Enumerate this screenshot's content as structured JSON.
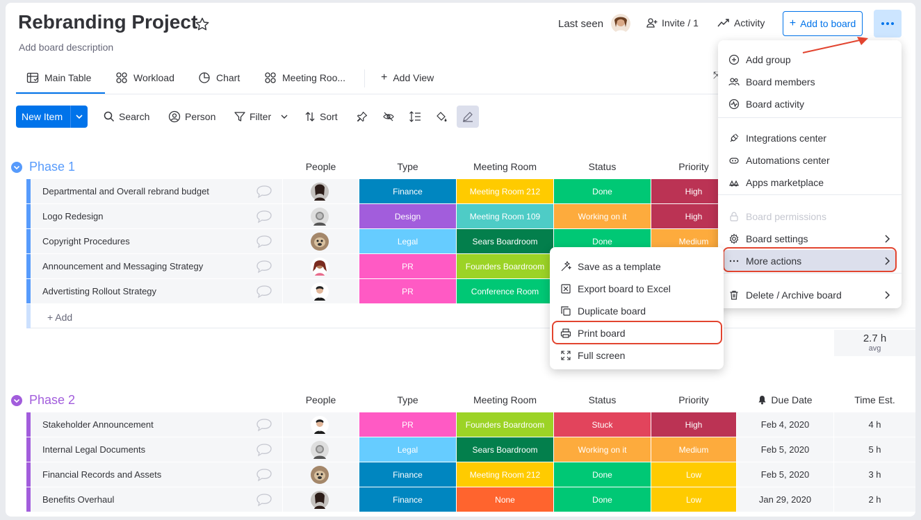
{
  "board": {
    "title": "Rebranding Project",
    "description": "Add board description",
    "last_seen": "Last seen",
    "invite": "Invite / 1",
    "activity": "Activity",
    "add_to_board": "Add to board"
  },
  "tabs": [
    "Main Table",
    "Workload",
    "Chart",
    "Meeting Roo...",
    "Add View"
  ],
  "toolbar": {
    "new_item": "New Item",
    "search": "Search",
    "person": "Person",
    "filter": "Filter",
    "sort": "Sort"
  },
  "columns": [
    "People",
    "Type",
    "Meeting Room",
    "Status",
    "Priority",
    "Due Date",
    "Time Est."
  ],
  "colors": {
    "accent": "#0073ea",
    "phase1": "#579bfc",
    "phase2": "#a25ddc",
    "highlight": "#e2442f"
  },
  "groups": [
    {
      "title": "Phase 1",
      "add_label": "+ Add",
      "summary_value": "2.7 h",
      "summary_label": "avg",
      "rows": [
        {
          "name": "Departmental and Overall rebrand budget",
          "type": "Finance",
          "type_color": "#0086c0",
          "room": "Meeting Room 212",
          "room_color": "#ffcb00",
          "status": "Done",
          "status_color": "#00c875",
          "priority": "High",
          "priority_color": "#bb3354"
        },
        {
          "name": "Logo Redesign",
          "type": "Design",
          "type_color": "#a25ddc",
          "room": "Meeting Room 109",
          "room_color": "#4eccc6",
          "status": "Working on it",
          "status_color": "#fdab3d",
          "priority": "High",
          "priority_color": "#bb3354"
        },
        {
          "name": "Copyright Procedures",
          "type": "Legal",
          "type_color": "#66ccff",
          "room": "Sears Boardroom",
          "room_color": "#037f4c",
          "status": "Done",
          "status_color": "#00c875",
          "priority": "Medium",
          "priority_color": "#fdab3d"
        },
        {
          "name": "Announcement and Messaging Strategy",
          "type": "PR",
          "type_color": "#ff5ac4",
          "room": "Founders Boardroom",
          "room_color": "#9cd326",
          "status": "",
          "status_color": "#00c875",
          "priority": "",
          "priority_color": "#fdab3d"
        },
        {
          "name": "Advertisting Rollout Strategy",
          "type": "PR",
          "type_color": "#ff5ac4",
          "room": "Conference Room",
          "room_color": "#00c875",
          "status": "",
          "status_color": "#00c875",
          "priority": "",
          "priority_color": "#fdab3d"
        }
      ]
    },
    {
      "title": "Phase 2",
      "rows": [
        {
          "name": "Stakeholder Announcement",
          "type": "PR",
          "type_color": "#ff5ac4",
          "room": "Founders Boardroom",
          "room_color": "#9cd326",
          "status": "Stuck",
          "status_color": "#e2445c",
          "priority": "High",
          "priority_color": "#bb3354",
          "due": "Feb 4, 2020",
          "time": "4 h"
        },
        {
          "name": "Internal Legal Documents",
          "type": "Legal",
          "type_color": "#66ccff",
          "room": "Sears Boardroom",
          "room_color": "#037f4c",
          "status": "Working on it",
          "status_color": "#fdab3d",
          "priority": "Medium",
          "priority_color": "#fdab3d",
          "due": "Feb 5, 2020",
          "time": "5 h"
        },
        {
          "name": "Financial Records and Assets",
          "type": "Finance",
          "type_color": "#0086c0",
          "room": "Meeting Room 212",
          "room_color": "#ffcb00",
          "status": "Done",
          "status_color": "#00c875",
          "priority": "Low",
          "priority_color": "#ffcb00",
          "due": "Feb 5, 2020",
          "time": "3 h"
        },
        {
          "name": "Benefits Overhaul",
          "type": "Finance",
          "type_color": "#0086c0",
          "room": "None",
          "room_color": "#ff642e",
          "status": "Done",
          "status_color": "#00c875",
          "priority": "Low",
          "priority_color": "#ffcb00",
          "due": "Jan 29, 2020",
          "time": "2 h"
        }
      ]
    }
  ],
  "board_menu": {
    "items": [
      {
        "label": "Add group",
        "icon": "plus-circle-icon"
      },
      {
        "label": "Board members",
        "icon": "people-icon"
      },
      {
        "label": "Board activity",
        "icon": "activity-icon"
      },
      {
        "label": "Integrations center",
        "icon": "plug-icon"
      },
      {
        "label": "Automations center",
        "icon": "robot-icon"
      },
      {
        "label": "Apps marketplace",
        "icon": "apps-icon"
      },
      {
        "label": "Board permissions",
        "icon": "lock-icon"
      },
      {
        "label": "Board settings",
        "icon": "gear-icon"
      },
      {
        "label": "More actions",
        "icon": "dots-icon"
      },
      {
        "label": "Delete / Archive board",
        "icon": "trash-icon"
      }
    ]
  },
  "more_actions_menu": {
    "items": [
      {
        "label": "Save as a template",
        "icon": "magic-icon"
      },
      {
        "label": "Export board to Excel",
        "icon": "excel-icon"
      },
      {
        "label": "Duplicate board",
        "icon": "duplicate-icon"
      },
      {
        "label": "Print board",
        "icon": "print-icon"
      },
      {
        "label": "Full screen",
        "icon": "fullscreen-icon"
      }
    ]
  }
}
